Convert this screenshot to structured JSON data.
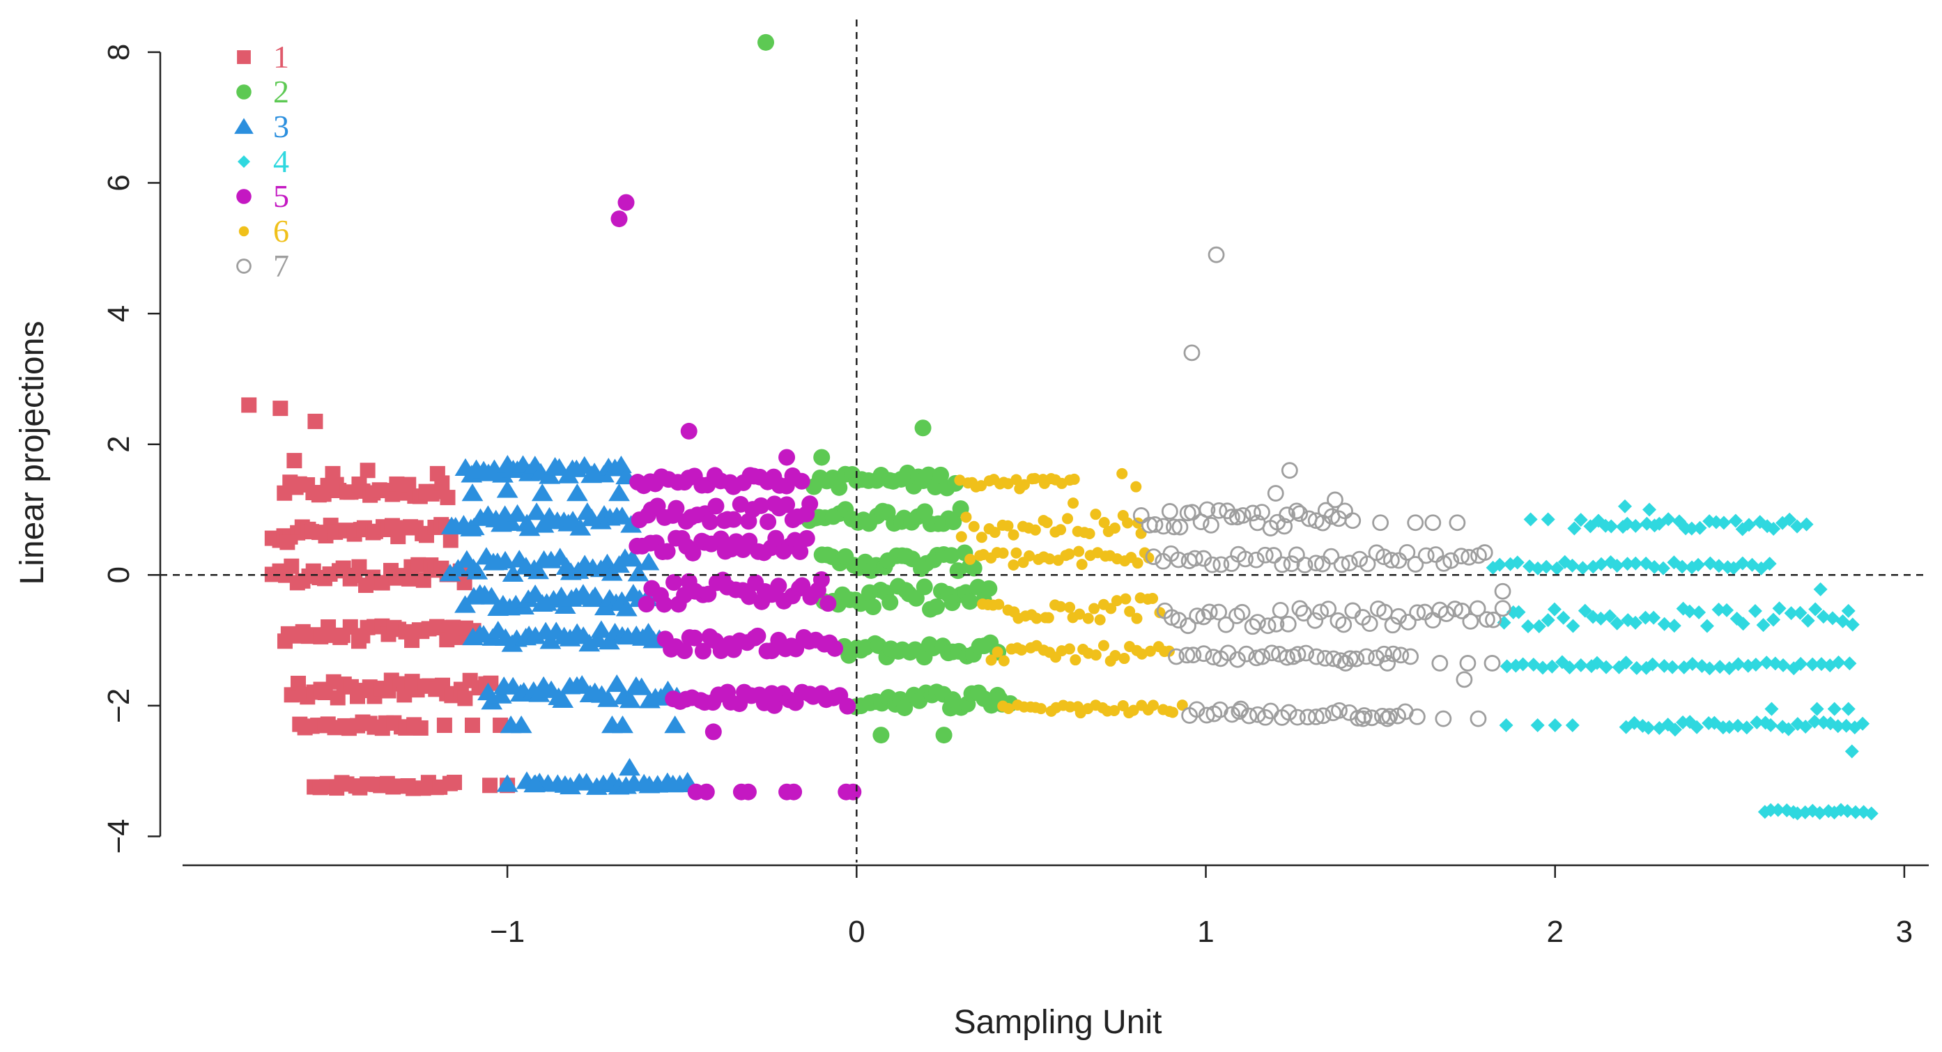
{
  "chart_data": {
    "type": "scatter",
    "title": "",
    "xlabel": "Sampling Unit",
    "ylabel": "Linear projections",
    "xlim": [
      -1.93,
      3.07
    ],
    "ylim": [
      -4.4,
      8.5
    ],
    "xticks": [
      -1,
      0,
      1,
      2,
      3
    ],
    "xtick_labels": [
      "−1",
      "0",
      "1",
      "2",
      "3"
    ],
    "yticks": [
      -4,
      -2,
      0,
      2,
      4,
      6,
      8
    ],
    "ytick_labels": [
      "−4",
      "−2",
      "0",
      "2",
      "4",
      "6",
      "8"
    ],
    "reference_lines": {
      "x": 0,
      "y": 0,
      "style": "dashed"
    },
    "legend_position": "top-left",
    "series": [
      {
        "name": "1",
        "color": "#e05a6b",
        "marker": "square",
        "bands": [
          {
            "x": [
              -1.64,
              -1.17
            ],
            "y": 1.3,
            "spread": 0.12,
            "n": 30
          },
          {
            "x": [
              -1.67,
              -1.16
            ],
            "y": 0.65,
            "spread": 0.12,
            "n": 32
          },
          {
            "x": [
              -1.67,
              -1.12
            ],
            "y": 0.0,
            "spread": 0.16,
            "n": 34
          },
          {
            "x": [
              -1.64,
              -1.1
            ],
            "y": -0.9,
            "spread": 0.12,
            "n": 32
          },
          {
            "x": [
              -1.62,
              -1.05
            ],
            "y": -1.75,
            "spread": 0.14,
            "n": 34
          },
          {
            "x": [
              -1.6,
              -1.25
            ],
            "y": -2.3,
            "spread": 0.05,
            "n": 20
          },
          {
            "x": [
              -1.55,
              -1.15
            ],
            "y": -3.22,
            "spread": 0.05,
            "n": 22
          }
        ],
        "points": [
          [
            -1.74,
            2.6
          ],
          [
            -1.65,
            2.55
          ],
          [
            -1.55,
            2.35
          ],
          [
            -1.61,
            1.75
          ],
          [
            -1.5,
            1.55
          ],
          [
            -1.4,
            1.6
          ],
          [
            -1.2,
            1.55
          ],
          [
            -1.63,
            0.5
          ],
          [
            -1.18,
            -2.3
          ],
          [
            -1.1,
            -2.3
          ],
          [
            -1.02,
            -2.3
          ],
          [
            -1.05,
            -3.22
          ],
          [
            -1.0,
            -3.22
          ]
        ]
      },
      {
        "name": "2",
        "color": "#5dc953",
        "marker": "circle",
        "bands": [
          {
            "x": [
              -0.12,
              0.28
            ],
            "y": 1.45,
            "spread": 0.12,
            "n": 24
          },
          {
            "x": [
              -0.14,
              0.3
            ],
            "y": 0.9,
            "spread": 0.12,
            "n": 26
          },
          {
            "x": [
              -0.1,
              0.34
            ],
            "y": 0.2,
            "spread": 0.14,
            "n": 26
          },
          {
            "x": [
              -0.09,
              0.38
            ],
            "y": -0.35,
            "spread": 0.18,
            "n": 28
          },
          {
            "x": [
              -0.04,
              0.4
            ],
            "y": -1.15,
            "spread": 0.12,
            "n": 26
          },
          {
            "x": [
              0.0,
              0.44
            ],
            "y": -1.9,
            "spread": 0.14,
            "n": 26
          }
        ],
        "points": [
          [
            -0.26,
            8.15
          ],
          [
            0.19,
            2.25
          ],
          [
            -0.1,
            1.8
          ],
          [
            0.07,
            -2.45
          ],
          [
            0.25,
            -2.45
          ],
          [
            0.41,
            -1.9
          ]
        ]
      },
      {
        "name": "3",
        "color": "#2b8fde",
        "marker": "triangle",
        "bands": [
          {
            "x": [
              -1.12,
              -0.66
            ],
            "y": 1.6,
            "spread": 0.1,
            "n": 28
          },
          {
            "x": [
              -1.16,
              -0.65
            ],
            "y": 0.85,
            "spread": 0.14,
            "n": 30
          },
          {
            "x": [
              -1.16,
              -0.6
            ],
            "y": 0.15,
            "spread": 0.14,
            "n": 30
          },
          {
            "x": [
              -1.12,
              -0.6
            ],
            "y": -0.4,
            "spread": 0.12,
            "n": 30
          },
          {
            "x": [
              -1.1,
              -0.56
            ],
            "y": -0.95,
            "spread": 0.12,
            "n": 30
          },
          {
            "x": [
              -1.06,
              -0.52
            ],
            "y": -1.8,
            "spread": 0.14,
            "n": 30
          },
          {
            "x": [
              -0.95,
              -0.48
            ],
            "y": -3.2,
            "spread": 0.05,
            "n": 22
          }
        ],
        "points": [
          [
            -1.1,
            1.25
          ],
          [
            -1.0,
            1.3
          ],
          [
            -0.9,
            1.25
          ],
          [
            -0.8,
            1.25
          ],
          [
            -0.68,
            1.25
          ],
          [
            -0.96,
            -2.3
          ],
          [
            -0.99,
            -2.3
          ],
          [
            -0.7,
            -2.3
          ],
          [
            -0.67,
            -2.3
          ],
          [
            -0.52,
            -2.3
          ],
          [
            -1.0,
            -3.2
          ],
          [
            -0.92,
            -3.2
          ],
          [
            -0.65,
            -2.95
          ]
        ]
      },
      {
        "name": "4",
        "color": "#2fd8df",
        "marker": "diamond",
        "bands": [
          {
            "x": [
              2.05,
              2.72
            ],
            "y": 0.78,
            "spread": 0.08,
            "n": 30
          },
          {
            "x": [
              1.82,
              2.62
            ],
            "y": 0.15,
            "spread": 0.05,
            "n": 32
          },
          {
            "x": [
              1.85,
              2.85
            ],
            "y": -0.65,
            "spread": 0.14,
            "n": 40
          },
          {
            "x": [
              1.86,
              2.84
            ],
            "y": -1.38,
            "spread": 0.05,
            "n": 38
          },
          {
            "x": [
              2.2,
              2.88
            ],
            "y": -2.3,
            "spread": 0.07,
            "n": 30
          },
          {
            "x": [
              2.6,
              2.9
            ],
            "y": -3.62,
            "spread": 0.03,
            "n": 16
          }
        ],
        "points": [
          [
            1.93,
            0.85
          ],
          [
            1.98,
            0.85
          ],
          [
            2.2,
            1.05
          ],
          [
            2.27,
            1.0
          ],
          [
            2.76,
            -0.22
          ],
          [
            2.84,
            -0.55
          ],
          [
            2.62,
            -2.05
          ],
          [
            2.75,
            -2.05
          ],
          [
            2.8,
            -2.05
          ],
          [
            2.84,
            -2.05
          ],
          [
            1.86,
            -2.3
          ],
          [
            1.95,
            -2.3
          ],
          [
            2.0,
            -2.3
          ],
          [
            2.05,
            -2.3
          ],
          [
            2.85,
            -2.7
          ]
        ]
      },
      {
        "name": "5",
        "color": "#c418c2",
        "marker": "circle",
        "bands": [
          {
            "x": [
              -0.63,
              -0.16
            ],
            "y": 1.45,
            "spread": 0.1,
            "n": 26
          },
          {
            "x": [
              -0.62,
              -0.13
            ],
            "y": 0.95,
            "spread": 0.14,
            "n": 28
          },
          {
            "x": [
              -0.63,
              -0.14
            ],
            "y": 0.45,
            "spread": 0.12,
            "n": 28
          },
          {
            "x": [
              -0.6,
              -0.08
            ],
            "y": -0.25,
            "spread": 0.2,
            "n": 30
          },
          {
            "x": [
              -0.55,
              -0.06
            ],
            "y": -1.05,
            "spread": 0.12,
            "n": 28
          },
          {
            "x": [
              -0.52,
              -0.03
            ],
            "y": -1.9,
            "spread": 0.12,
            "n": 28
          }
        ],
        "points": [
          [
            -0.66,
            5.7
          ],
          [
            -0.68,
            5.45
          ],
          [
            -0.48,
            2.2
          ],
          [
            -0.2,
            1.8
          ],
          [
            -0.41,
            -2.4
          ],
          [
            -0.46,
            -3.32
          ],
          [
            -0.43,
            -3.32
          ],
          [
            -0.33,
            -3.32
          ],
          [
            -0.31,
            -3.32
          ],
          [
            -0.2,
            -3.32
          ],
          [
            -0.18,
            -3.32
          ],
          [
            -0.03,
            -3.32
          ],
          [
            -0.01,
            -3.32
          ]
        ]
      },
      {
        "name": "6",
        "color": "#f0c01a",
        "marker": "smalldot",
        "bands": [
          {
            "x": [
              0.3,
              0.62
            ],
            "y": 1.4,
            "spread": 0.1,
            "n": 22
          },
          {
            "x": [
              0.3,
              0.82
            ],
            "y": 0.75,
            "spread": 0.18,
            "n": 28
          },
          {
            "x": [
              0.33,
              0.84
            ],
            "y": 0.25,
            "spread": 0.12,
            "n": 28
          },
          {
            "x": [
              0.36,
              0.87
            ],
            "y": -0.5,
            "spread": 0.2,
            "n": 30
          },
          {
            "x": [
              0.38,
              0.9
            ],
            "y": -1.2,
            "spread": 0.12,
            "n": 28
          },
          {
            "x": [
              0.42,
              0.93
            ],
            "y": -2.05,
            "spread": 0.06,
            "n": 28
          }
        ],
        "points": [
          [
            0.76,
            1.55
          ],
          [
            0.8,
            1.35
          ],
          [
            0.62,
            1.1
          ]
        ]
      },
      {
        "name": "7",
        "color": "#9e9e9e",
        "marker": "opencircle",
        "bands": [
          {
            "x": [
              0.82,
              1.42
            ],
            "y": 0.85,
            "spread": 0.15,
            "n": 34
          },
          {
            "x": [
              0.85,
              1.8
            ],
            "y": 0.25,
            "spread": 0.1,
            "n": 40
          },
          {
            "x": [
              0.88,
              1.85
            ],
            "y": -0.65,
            "spread": 0.14,
            "n": 44
          },
          {
            "x": [
              0.92,
              1.58
            ],
            "y": -1.25,
            "spread": 0.06,
            "n": 28
          },
          {
            "x": [
              0.95,
              1.6
            ],
            "y": -2.12,
            "spread": 0.08,
            "n": 28
          }
        ],
        "points": [
          [
            1.03,
            4.9
          ],
          [
            0.96,
            3.4
          ],
          [
            1.24,
            1.6
          ],
          [
            1.2,
            1.25
          ],
          [
            1.37,
            1.15
          ],
          [
            1.5,
            0.8
          ],
          [
            1.6,
            0.8
          ],
          [
            1.65,
            0.8
          ],
          [
            1.72,
            0.8
          ],
          [
            1.85,
            -0.25
          ],
          [
            1.25,
            -1.25
          ],
          [
            1.4,
            -1.35
          ],
          [
            1.52,
            -1.35
          ],
          [
            1.67,
            -1.35
          ],
          [
            1.75,
            -1.35
          ],
          [
            1.82,
            -1.35
          ],
          [
            1.74,
            -1.6
          ],
          [
            1.45,
            -2.2
          ],
          [
            1.52,
            -2.2
          ],
          [
            1.68,
            -2.2
          ],
          [
            1.78,
            -2.2
          ],
          [
            1.1,
            -2.05
          ]
        ]
      }
    ]
  }
}
